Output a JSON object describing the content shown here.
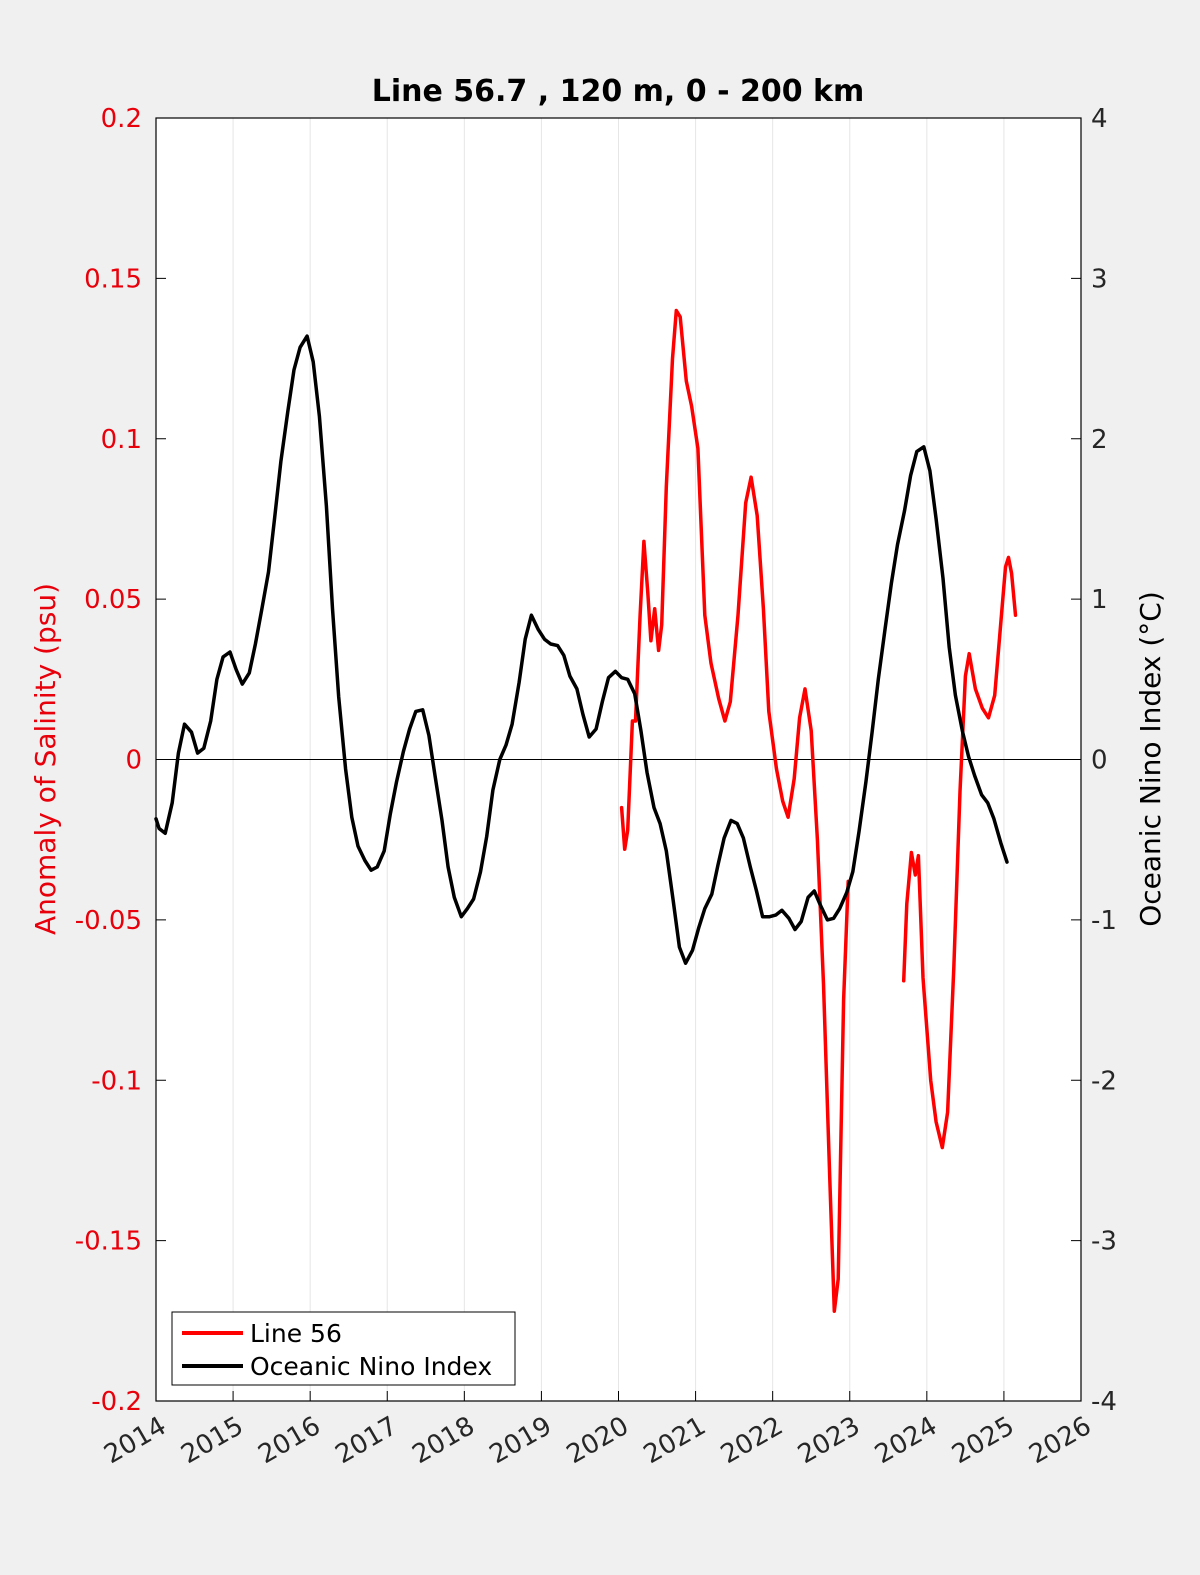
{
  "chart_data": {
    "type": "line",
    "title": "Line 56.7 , 120 m, 0 - 200 km",
    "xlabel": "",
    "ylabel_left": "Anomaly of Salinity (psu)",
    "ylabel_right": "Oceanic Nino Index (°C)",
    "xlim": [
      2014,
      2026
    ],
    "ylim_left": [
      -0.2,
      0.2
    ],
    "ylim_right": [
      -4,
      4
    ],
    "x_ticks": [
      "2014",
      "2015",
      "2016",
      "2017",
      "2018",
      "2019",
      "2020",
      "2021",
      "2022",
      "2023",
      "2024",
      "2025",
      "2026"
    ],
    "y_ticks_left": [
      "-0.2",
      "-0.15",
      "-0.1",
      "-0.05",
      "0",
      "0.05",
      "0.1",
      "0.15",
      "0.2"
    ],
    "y_ticks_right": [
      "-4",
      "-3",
      "-2",
      "-1",
      "0",
      "1",
      "2",
      "3",
      "4"
    ],
    "grid": "vertical",
    "zero_line": true,
    "legend_position": "bottom-left",
    "colors": {
      "left_axis": "#e8000b",
      "line56": "#ff0000",
      "oni": "#000000",
      "background": "#f0f0f0",
      "plot_area": "#ffffff"
    },
    "series": [
      {
        "name": "Line 56",
        "axis": "left",
        "color": "#ff0000",
        "segments": [
          [
            [
              2020.04,
              -0.015
            ],
            [
              2020.08,
              -0.028
            ],
            [
              2020.12,
              -0.022
            ],
            [
              2020.18,
              0.012
            ],
            [
              2020.22,
              0.012
            ],
            [
              2020.28,
              0.045
            ],
            [
              2020.33,
              0.068
            ],
            [
              2020.38,
              0.052
            ],
            [
              2020.42,
              0.037
            ],
            [
              2020.47,
              0.047
            ],
            [
              2020.52,
              0.034
            ],
            [
              2020.56,
              0.042
            ],
            [
              2020.62,
              0.085
            ],
            [
              2020.7,
              0.125
            ],
            [
              2020.75,
              0.14
            ],
            [
              2020.8,
              0.138
            ],
            [
              2020.88,
              0.118
            ],
            [
              2020.95,
              0.11
            ],
            [
              2021.03,
              0.097
            ],
            [
              2021.12,
              0.045
            ],
            [
              2021.2,
              0.03
            ],
            [
              2021.3,
              0.019
            ],
            [
              2021.38,
              0.012
            ],
            [
              2021.45,
              0.018
            ],
            [
              2021.55,
              0.045
            ],
            [
              2021.65,
              0.08
            ],
            [
              2021.72,
              0.088
            ],
            [
              2021.8,
              0.076
            ],
            [
              2021.88,
              0.047
            ],
            [
              2021.95,
              0.015
            ],
            [
              2022.05,
              -0.003
            ],
            [
              2022.13,
              -0.013
            ],
            [
              2022.2,
              -0.018
            ],
            [
              2022.28,
              -0.006
            ],
            [
              2022.35,
              0.013
            ],
            [
              2022.42,
              0.022
            ],
            [
              2022.5,
              0.009
            ],
            [
              2022.58,
              -0.025
            ],
            [
              2022.66,
              -0.07
            ],
            [
              2022.74,
              -0.13
            ],
            [
              2022.8,
              -0.172
            ],
            [
              2022.85,
              -0.162
            ],
            [
              2022.92,
              -0.075
            ],
            [
              2022.98,
              -0.038
            ]
          ],
          [
            [
              2023.7,
              -0.069
            ],
            [
              2023.74,
              -0.045
            ],
            [
              2023.8,
              -0.029
            ],
            [
              2023.85,
              -0.036
            ],
            [
              2023.89,
              -0.03
            ],
            [
              2023.95,
              -0.068
            ],
            [
              2024.05,
              -0.1
            ],
            [
              2024.12,
              -0.113
            ],
            [
              2024.2,
              -0.121
            ],
            [
              2024.27,
              -0.11
            ],
            [
              2024.35,
              -0.065
            ],
            [
              2024.43,
              -0.01
            ],
            [
              2024.5,
              0.026
            ],
            [
              2024.55,
              0.033
            ],
            [
              2024.63,
              0.022
            ],
            [
              2024.72,
              0.016
            ],
            [
              2024.8,
              0.013
            ],
            [
              2024.88,
              0.02
            ],
            [
              2024.95,
              0.04
            ],
            [
              2025.02,
              0.06
            ],
            [
              2025.06,
              0.063
            ],
            [
              2025.1,
              0.058
            ],
            [
              2025.15,
              0.045
            ]
          ]
        ]
      },
      {
        "name": "Oceanic Nino Index",
        "axis": "right",
        "color": "#000000",
        "points": [
          [
            2014.0,
            -0.37
          ],
          [
            2014.04,
            -0.43
          ],
          [
            2014.12,
            -0.46
          ],
          [
            2014.21,
            -0.27
          ],
          [
            2014.29,
            0.04
          ],
          [
            2014.37,
            0.22
          ],
          [
            2014.46,
            0.17
          ],
          [
            2014.54,
            0.04
          ],
          [
            2014.62,
            0.07
          ],
          [
            2014.71,
            0.24
          ],
          [
            2014.79,
            0.5
          ],
          [
            2014.87,
            0.64
          ],
          [
            2014.96,
            0.67
          ],
          [
            2015.04,
            0.56
          ],
          [
            2015.12,
            0.47
          ],
          [
            2015.21,
            0.54
          ],
          [
            2015.29,
            0.72
          ],
          [
            2015.37,
            0.93
          ],
          [
            2015.46,
            1.17
          ],
          [
            2015.54,
            1.51
          ],
          [
            2015.62,
            1.86
          ],
          [
            2015.71,
            2.17
          ],
          [
            2015.79,
            2.43
          ],
          [
            2015.87,
            2.57
          ],
          [
            2015.96,
            2.64
          ],
          [
            2016.04,
            2.48
          ],
          [
            2016.12,
            2.14
          ],
          [
            2016.21,
            1.58
          ],
          [
            2016.29,
            0.94
          ],
          [
            2016.37,
            0.39
          ],
          [
            2016.46,
            -0.06
          ],
          [
            2016.54,
            -0.36
          ],
          [
            2016.62,
            -0.54
          ],
          [
            2016.71,
            -0.63
          ],
          [
            2016.79,
            -0.69
          ],
          [
            2016.87,
            -0.67
          ],
          [
            2016.96,
            -0.57
          ],
          [
            2017.04,
            -0.34
          ],
          [
            2017.12,
            -0.14
          ],
          [
            2017.21,
            0.05
          ],
          [
            2017.29,
            0.19
          ],
          [
            2017.37,
            0.3
          ],
          [
            2017.46,
            0.31
          ],
          [
            2017.54,
            0.15
          ],
          [
            2017.62,
            -0.1
          ],
          [
            2017.71,
            -0.38
          ],
          [
            2017.79,
            -0.67
          ],
          [
            2017.87,
            -0.86
          ],
          [
            2017.96,
            -0.98
          ],
          [
            2018.04,
            -0.93
          ],
          [
            2018.12,
            -0.87
          ],
          [
            2018.21,
            -0.7
          ],
          [
            2018.29,
            -0.48
          ],
          [
            2018.37,
            -0.19
          ],
          [
            2018.46,
            0.0
          ],
          [
            2018.54,
            0.09
          ],
          [
            2018.62,
            0.22
          ],
          [
            2018.71,
            0.48
          ],
          [
            2018.79,
            0.75
          ],
          [
            2018.87,
            0.9
          ],
          [
            2018.96,
            0.81
          ],
          [
            2019.04,
            0.75
          ],
          [
            2019.12,
            0.72
          ],
          [
            2019.21,
            0.71
          ],
          [
            2019.29,
            0.65
          ],
          [
            2019.37,
            0.52
          ],
          [
            2019.46,
            0.44
          ],
          [
            2019.54,
            0.28
          ],
          [
            2019.62,
            0.14
          ],
          [
            2019.71,
            0.19
          ],
          [
            2019.79,
            0.36
          ],
          [
            2019.87,
            0.51
          ],
          [
            2019.96,
            0.55
          ],
          [
            2020.04,
            0.51
          ],
          [
            2020.12,
            0.5
          ],
          [
            2020.21,
            0.41
          ],
          [
            2020.29,
            0.18
          ],
          [
            2020.37,
            -0.08
          ],
          [
            2020.46,
            -0.3
          ],
          [
            2020.54,
            -0.4
          ],
          [
            2020.62,
            -0.57
          ],
          [
            2020.71,
            -0.88
          ],
          [
            2020.79,
            -1.17
          ],
          [
            2020.87,
            -1.27
          ],
          [
            2020.96,
            -1.19
          ],
          [
            2021.04,
            -1.05
          ],
          [
            2021.12,
            -0.93
          ],
          [
            2021.21,
            -0.84
          ],
          [
            2021.29,
            -0.66
          ],
          [
            2021.37,
            -0.49
          ],
          [
            2021.46,
            -0.38
          ],
          [
            2021.54,
            -0.4
          ],
          [
            2021.62,
            -0.49
          ],
          [
            2021.71,
            -0.67
          ],
          [
            2021.79,
            -0.82
          ],
          [
            2021.87,
            -0.98
          ],
          [
            2021.96,
            -0.98
          ],
          [
            2022.04,
            -0.97
          ],
          [
            2022.12,
            -0.94
          ],
          [
            2022.21,
            -0.99
          ],
          [
            2022.29,
            -1.06
          ],
          [
            2022.37,
            -1.01
          ],
          [
            2022.46,
            -0.86
          ],
          [
            2022.54,
            -0.82
          ],
          [
            2022.62,
            -0.91
          ],
          [
            2022.71,
            -1.0
          ],
          [
            2022.79,
            -0.99
          ],
          [
            2022.87,
            -0.93
          ],
          [
            2022.96,
            -0.83
          ],
          [
            2023.04,
            -0.7
          ],
          [
            2023.12,
            -0.45
          ],
          [
            2023.21,
            -0.14
          ],
          [
            2023.29,
            0.17
          ],
          [
            2023.37,
            0.5
          ],
          [
            2023.46,
            0.82
          ],
          [
            2023.54,
            1.1
          ],
          [
            2023.62,
            1.34
          ],
          [
            2023.71,
            1.55
          ],
          [
            2023.79,
            1.77
          ],
          [
            2023.87,
            1.92
          ],
          [
            2023.96,
            1.95
          ],
          [
            2024.04,
            1.8
          ],
          [
            2024.12,
            1.5
          ],
          [
            2024.21,
            1.13
          ],
          [
            2024.29,
            0.7
          ],
          [
            2024.37,
            0.4
          ],
          [
            2024.46,
            0.18
          ],
          [
            2024.54,
            0.02
          ],
          [
            2024.62,
            -0.1
          ],
          [
            2024.71,
            -0.22
          ],
          [
            2024.79,
            -0.27
          ],
          [
            2024.87,
            -0.37
          ],
          [
            2024.96,
            -0.52
          ],
          [
            2025.04,
            -0.64
          ]
        ]
      }
    ]
  },
  "legend": {
    "items": [
      {
        "label": "Line 56",
        "color": "#ff0000"
      },
      {
        "label": "Oceanic Nino Index",
        "color": "#000000"
      }
    ]
  }
}
